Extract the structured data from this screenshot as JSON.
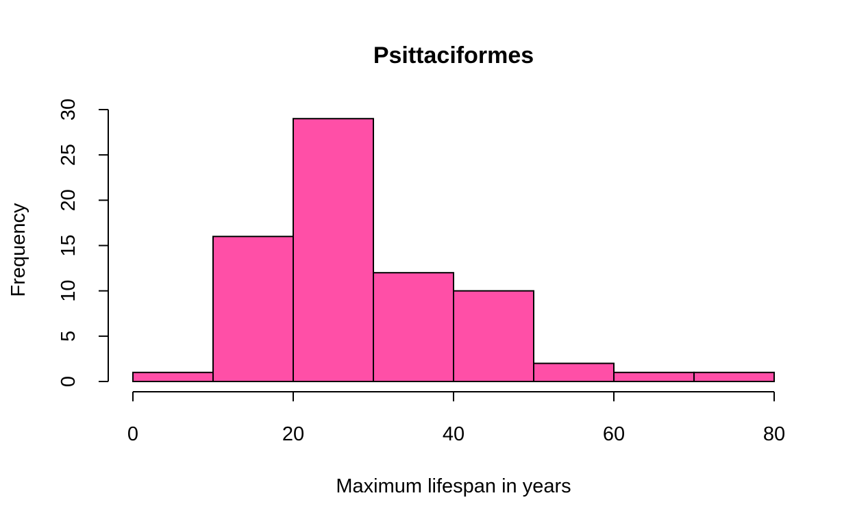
{
  "chart_data": {
    "type": "bar",
    "title": "Psittaciformes",
    "xlabel": "Maximum lifespan in years",
    "ylabel": "Frequency",
    "bins": [
      {
        "x0": 0,
        "x1": 10,
        "count": 1
      },
      {
        "x0": 10,
        "x1": 20,
        "count": 16
      },
      {
        "x0": 20,
        "x1": 30,
        "count": 29
      },
      {
        "x0": 30,
        "x1": 40,
        "count": 12
      },
      {
        "x0": 40,
        "x1": 50,
        "count": 10
      },
      {
        "x0": 50,
        "x1": 60,
        "count": 2
      },
      {
        "x0": 60,
        "x1": 70,
        "count": 1
      },
      {
        "x0": 70,
        "x1": 80,
        "count": 1
      }
    ],
    "xlim": [
      0,
      80
    ],
    "ylim": [
      0,
      30
    ],
    "x_ticks": [
      0,
      20,
      40,
      60,
      80
    ],
    "y_ticks": [
      0,
      5,
      10,
      15,
      20,
      25,
      30
    ],
    "bar_color": "#FF4FA7",
    "edge_color": "#000000",
    "grid": false,
    "legend": "none"
  }
}
